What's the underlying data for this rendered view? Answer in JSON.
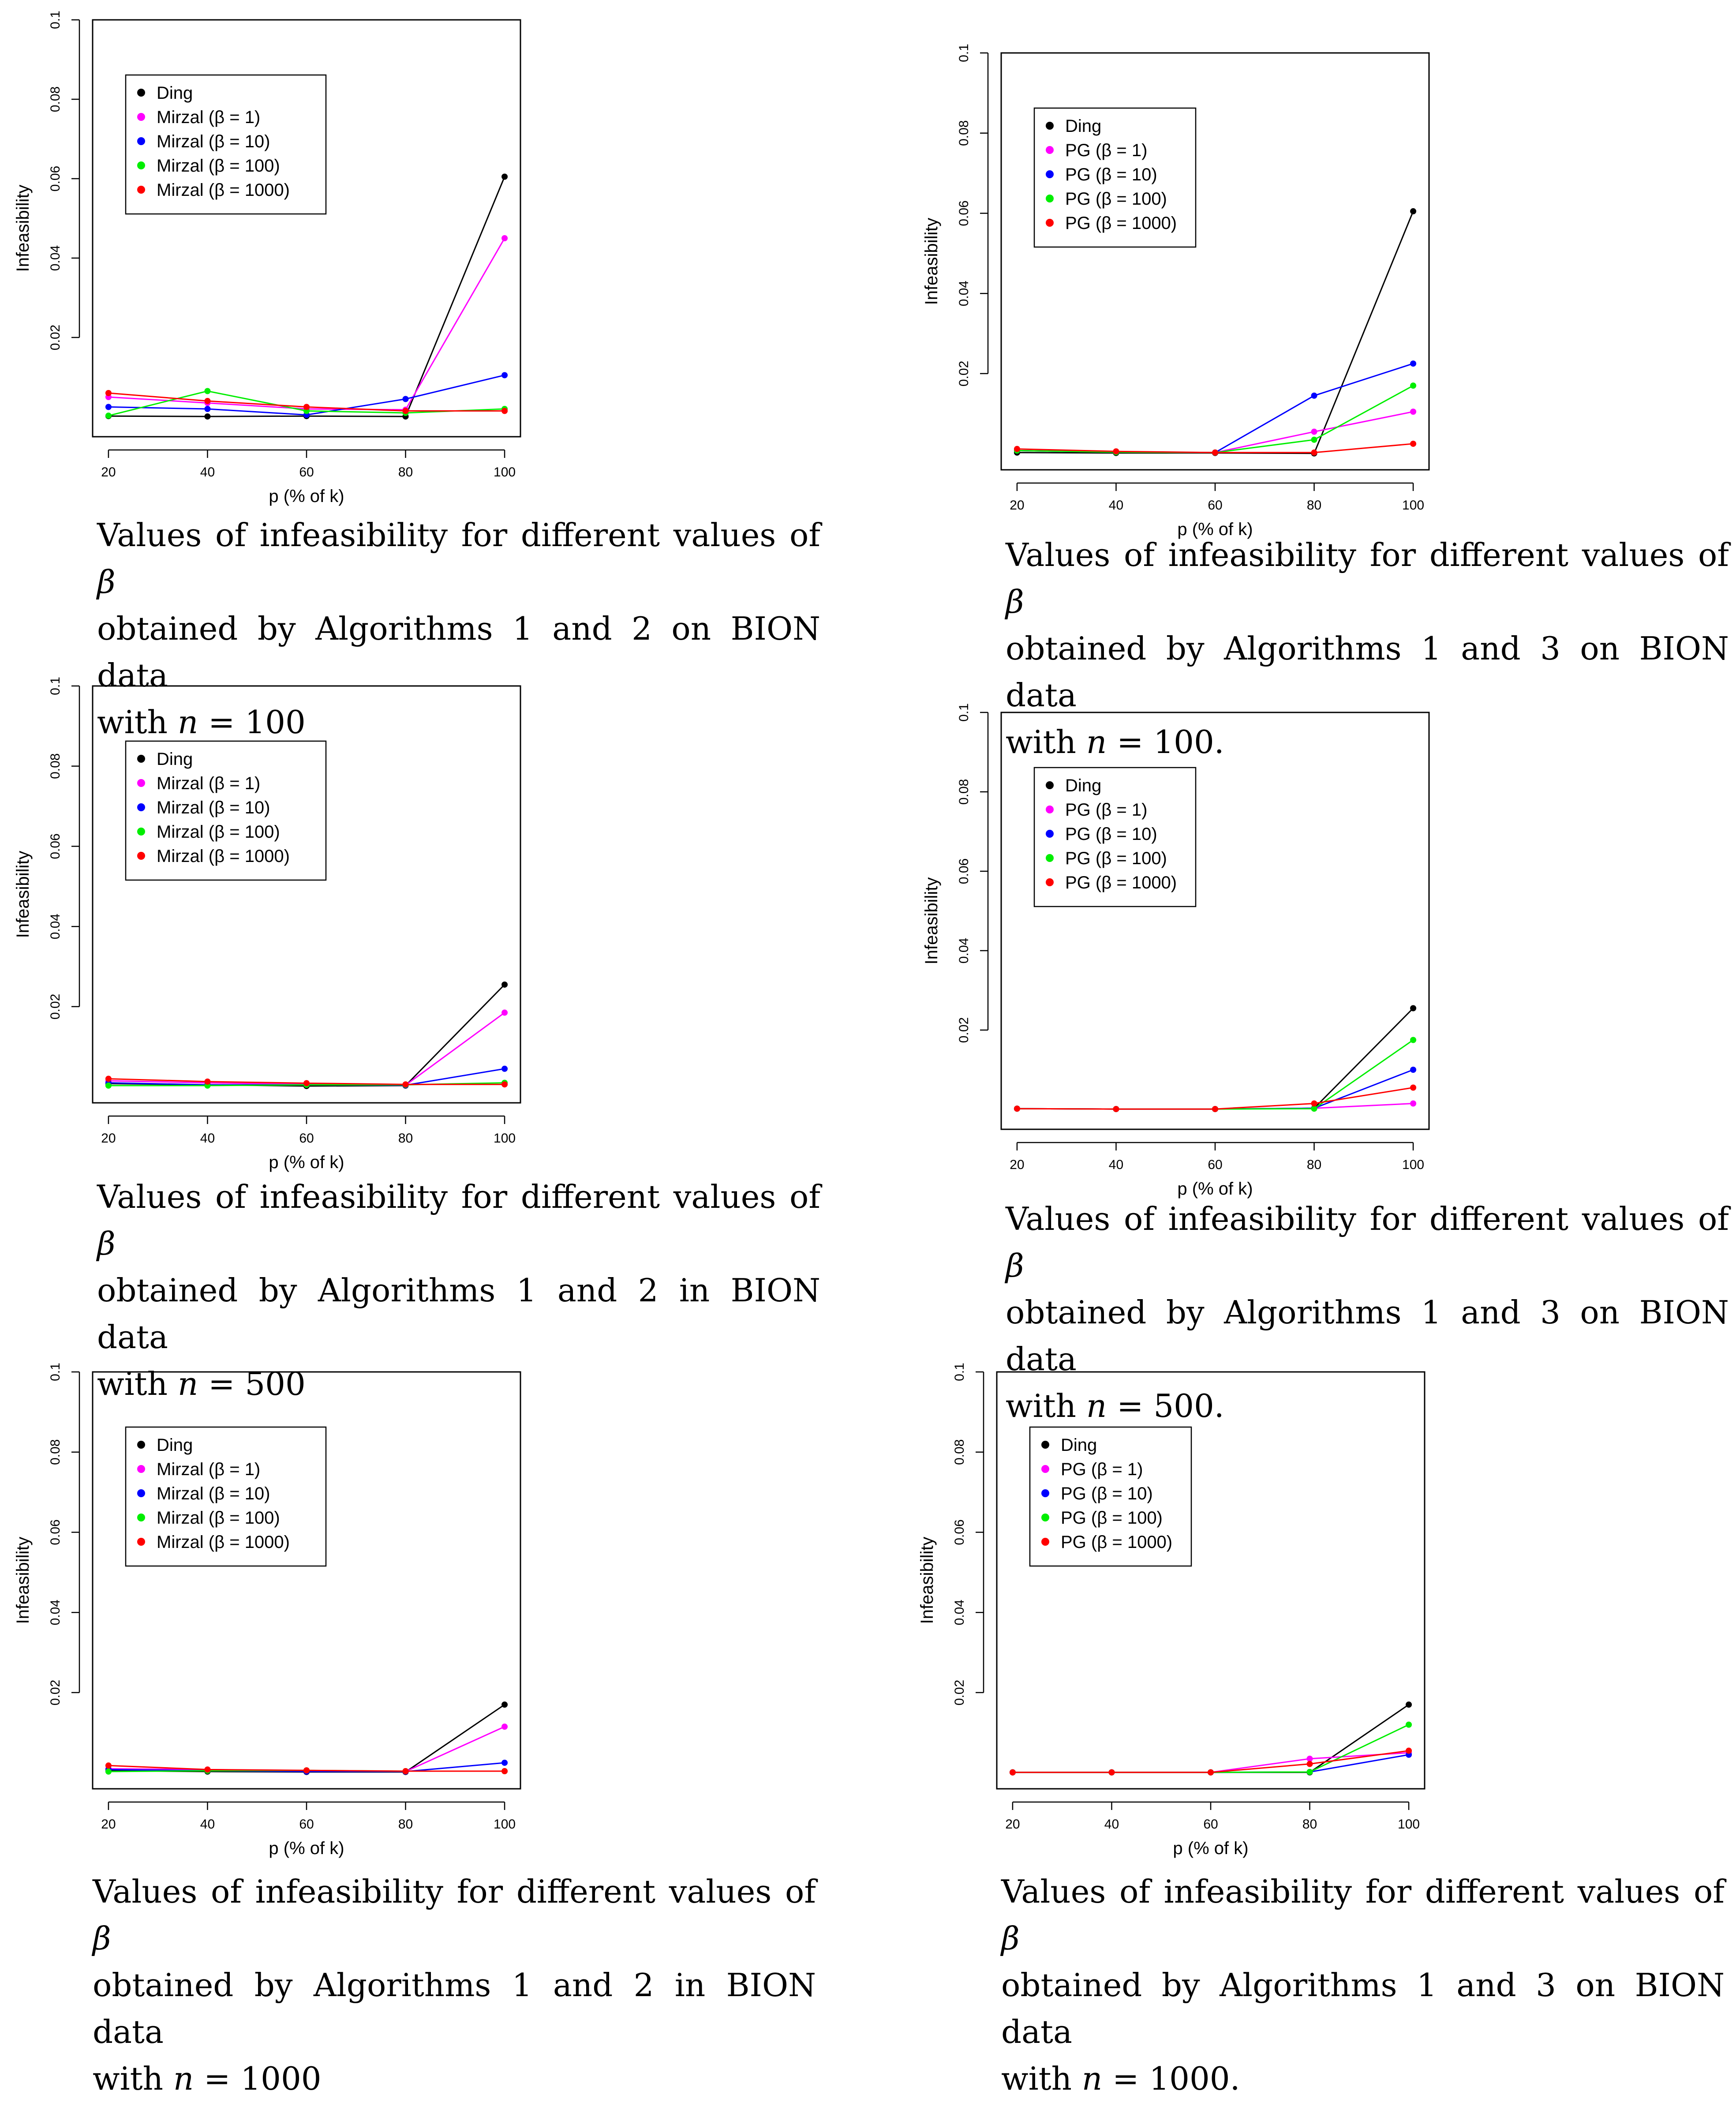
{
  "colors": {
    "Ding": "#000000",
    "beta1": "#ff00ff",
    "beta10": "#0000ff",
    "beta100": "#00ee00",
    "beta1000": "#ff0000"
  },
  "chart_data": [
    {
      "type": "line",
      "title": "",
      "xlabel": "p (% of k)",
      "ylabel": "Infeasibility",
      "x": [
        20,
        40,
        60,
        80,
        100
      ],
      "xticks": [
        "20",
        "40",
        "60",
        "80",
        "100"
      ],
      "yticks": [
        "0.02",
        "0.04",
        "0.06",
        "0.08",
        "0.1"
      ],
      "ylim": [
        -0.005,
        0.1
      ],
      "legend": "top-left",
      "series": [
        {
          "name": "Ding",
          "key": "Ding",
          "values": [
            0.0002,
            0.0001,
            0.0002,
            0.0001,
            0.0605
          ]
        },
        {
          "name": "Mirzal (β = 1)",
          "key": "beta1",
          "values": [
            0.005,
            0.0035,
            0.002,
            0.0018,
            0.045
          ]
        },
        {
          "name": "Mirzal (β = 10)",
          "key": "beta10",
          "values": [
            0.0025,
            0.002,
            0.0005,
            0.0045,
            0.0105
          ]
        },
        {
          "name": "Mirzal (β = 100)",
          "key": "beta100",
          "values": [
            0.0003,
            0.0065,
            0.0015,
            0.001,
            0.002
          ]
        },
        {
          "name": "Mirzal (β = 1000)",
          "key": "beta1000",
          "values": [
            0.006,
            0.004,
            0.0025,
            0.0015,
            0.0015
          ]
        }
      ],
      "caption": {
        "line1": "Values of infeasibility for different values of",
        "symbol": "β",
        "line2": "obtained by Algorithms 1 and 2 on BION data",
        "line3_prefix": "with",
        "var": "n",
        "line3_rest": "= 100"
      }
    },
    {
      "type": "line",
      "title": "",
      "xlabel": "p (% of k)",
      "ylabel": "Infeasibility",
      "x": [
        20,
        40,
        60,
        80,
        100
      ],
      "xticks": [
        "20",
        "40",
        "60",
        "80",
        "100"
      ],
      "yticks": [
        "0.02",
        "0.04",
        "0.06",
        "0.08",
        "0.1"
      ],
      "ylim": [
        -0.004,
        0.1
      ],
      "legend": "top-left",
      "series": [
        {
          "name": "Ding",
          "key": "Ding",
          "values": [
            0.0003,
            0.0002,
            0.0002,
            0.0001,
            0.0605
          ]
        },
        {
          "name": "PG (β = 1)",
          "key": "beta1",
          "values": [
            0.0008,
            0.0004,
            0.0003,
            0.0055,
            0.0105
          ]
        },
        {
          "name": "PG (β = 10)",
          "key": "beta10",
          "values": [
            0.0008,
            0.0004,
            0.0003,
            0.0145,
            0.0225
          ]
        },
        {
          "name": "PG (β = 100)",
          "key": "beta100",
          "values": [
            0.0008,
            0.0004,
            0.0003,
            0.0035,
            0.017
          ]
        },
        {
          "name": "PG (β = 1000)",
          "key": "beta1000",
          "values": [
            0.0012,
            0.0006,
            0.0003,
            0.0003,
            0.0025
          ]
        }
      ],
      "caption": {
        "line1": "Values of infeasibility for different values of",
        "symbol": "β",
        "line2": "obtained by Algorithms 1 and 3 on BION data",
        "line3_prefix": "with",
        "var": "n",
        "line3_rest": "= 100."
      }
    },
    {
      "type": "line",
      "title": "",
      "xlabel": "p (% of k)",
      "ylabel": "Infeasibility",
      "x": [
        20,
        40,
        60,
        80,
        100
      ],
      "xticks": [
        "20",
        "40",
        "60",
        "80",
        "100"
      ],
      "yticks": [
        "0.02",
        "0.04",
        "0.06",
        "0.08",
        "0.1"
      ],
      "ylim": [
        -0.004,
        0.1
      ],
      "legend": "top-left",
      "series": [
        {
          "name": "Ding",
          "key": "Ding",
          "values": [
            0.0008,
            0.0005,
            0.0002,
            0.0003,
            0.0255
          ]
        },
        {
          "name": "Mirzal (β = 1)",
          "key": "beta1",
          "values": [
            0.0015,
            0.001,
            0.0006,
            0.0004,
            0.0185
          ]
        },
        {
          "name": "Mirzal (β = 10)",
          "key": "beta10",
          "values": [
            0.001,
            0.0005,
            0.0005,
            0.0004,
            0.0045
          ]
        },
        {
          "name": "Mirzal (β = 100)",
          "key": "beta100",
          "values": [
            0.0003,
            0.0003,
            0.0005,
            0.0005,
            0.001
          ]
        },
        {
          "name": "Mirzal (β = 1000)",
          "key": "beta1000",
          "values": [
            0.002,
            0.0013,
            0.0009,
            0.0006,
            0.0006
          ]
        }
      ],
      "caption": {
        "line1": "Values of infeasibility for different values of",
        "symbol": "β",
        "line2": "obtained by Algorithms 1 and 2 in BION data",
        "line3_prefix": "with",
        "var": "n",
        "line3_rest": "= 500"
      }
    },
    {
      "type": "line",
      "title": "",
      "xlabel": "p (% of k)",
      "ylabel": "Infeasibility",
      "x": [
        20,
        40,
        60,
        80,
        100
      ],
      "xticks": [
        "20",
        "40",
        "60",
        "80",
        "100"
      ],
      "yticks": [
        "0.02",
        "0.04",
        "0.06",
        "0.08",
        "0.1"
      ],
      "ylim": [
        -0.005,
        0.1
      ],
      "legend": "top-left",
      "series": [
        {
          "name": "Ding",
          "key": "Ding",
          "values": [
            0.0002,
            0.0001,
            0.0001,
            0.0003,
            0.0255
          ]
        },
        {
          "name": "PG (β = 1)",
          "key": "beta1",
          "values": [
            0.0002,
            0.0001,
            0.0001,
            0.0003,
            0.0015
          ]
        },
        {
          "name": "PG (β = 10)",
          "key": "beta10",
          "values": [
            0.0002,
            0.0001,
            0.0001,
            0.0003,
            0.01
          ]
        },
        {
          "name": "PG (β = 100)",
          "key": "beta100",
          "values": [
            0.0002,
            0.0001,
            0.0001,
            0.0002,
            0.0175
          ]
        },
        {
          "name": "PG (β = 1000)",
          "key": "beta1000",
          "values": [
            0.0002,
            0.0001,
            0.0001,
            0.0015,
            0.0055
          ]
        }
      ],
      "caption": {
        "line1": "Values of infeasibility for different values of",
        "symbol": "β",
        "line2": "obtained by Algorithms 1 and 3 on BION data",
        "line3_prefix": "with",
        "var": "n",
        "line3_rest": "= 500."
      }
    },
    {
      "type": "line",
      "title": "",
      "xlabel": "p (% of k)",
      "ylabel": "Infeasibility",
      "x": [
        20,
        40,
        60,
        80,
        100
      ],
      "xticks": [
        "20",
        "40",
        "60",
        "80",
        "100"
      ],
      "yticks": [
        "0.02",
        "0.04",
        "0.06",
        "0.08",
        "0.1"
      ],
      "ylim": [
        -0.004,
        0.1
      ],
      "legend": "top-left",
      "series": [
        {
          "name": "Ding",
          "key": "Ding",
          "values": [
            0.0005,
            0.0003,
            0.0002,
            0.0002,
            0.017
          ]
        },
        {
          "name": "Mirzal (β = 1)",
          "key": "beta1",
          "values": [
            0.001,
            0.0008,
            0.0005,
            0.0003,
            0.0115
          ]
        },
        {
          "name": "Mirzal (β = 10)",
          "key": "beta10",
          "values": [
            0.0008,
            0.0005,
            0.0003,
            0.0003,
            0.0025
          ]
        },
        {
          "name": "Mirzal (β = 100)",
          "key": "beta100",
          "values": [
            0.0003,
            0.0005,
            0.0006,
            0.0004,
            0.0004
          ]
        },
        {
          "name": "Mirzal (β = 1000)",
          "key": "beta1000",
          "values": [
            0.0018,
            0.0008,
            0.0006,
            0.0004,
            0.0004
          ]
        }
      ],
      "caption": {
        "line1": "Values of infeasibility for different values of",
        "symbol": "β",
        "line2": "obtained by Algorithms 1 and 2 in BION data",
        "line3_prefix": "with",
        "var": "n",
        "line3_rest": "= 1000"
      }
    },
    {
      "type": "line",
      "title": "",
      "xlabel": "p (% of k)",
      "ylabel": "Infeasibility",
      "x": [
        20,
        40,
        60,
        80,
        100
      ],
      "xticks": [
        "20",
        "40",
        "60",
        "80",
        "100"
      ],
      "yticks": [
        "0.02",
        "0.04",
        "0.06",
        "0.08",
        "0.1"
      ],
      "ylim": [
        -0.004,
        0.1
      ],
      "legend": "top-left",
      "series": [
        {
          "name": "Ding",
          "key": "Ding",
          "values": [
            0.0001,
            0.0001,
            0.0001,
            0.0001,
            0.017
          ]
        },
        {
          "name": "PG (β = 1)",
          "key": "beta1",
          "values": [
            0.0001,
            0.0001,
            0.0001,
            0.0035,
            0.005
          ]
        },
        {
          "name": "PG (β = 10)",
          "key": "beta10",
          "values": [
            0.0001,
            0.0001,
            0.0001,
            0.0002,
            0.0045
          ]
        },
        {
          "name": "PG (β = 100)",
          "key": "beta100",
          "values": [
            0.0001,
            0.0001,
            0.0001,
            0.0002,
            0.012
          ]
        },
        {
          "name": "PG (β = 1000)",
          "key": "beta1000",
          "values": [
            0.0001,
            0.0001,
            0.0001,
            0.0022,
            0.0055
          ]
        }
      ],
      "caption": {
        "line1": "Values of infeasibility for different values of",
        "symbol": "β",
        "line2": "obtained by Algorithms 1 and 3 on BION data",
        "line3_prefix": "with",
        "var": "n",
        "line3_rest": "= 1000."
      }
    }
  ]
}
